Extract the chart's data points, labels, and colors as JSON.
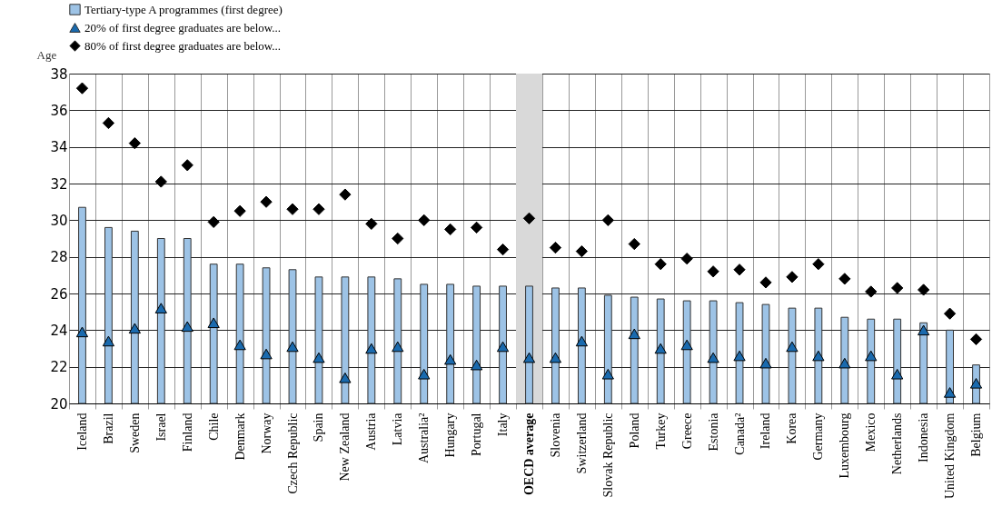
{
  "chart_data": {
    "type": "bar",
    "ylabel": "Age",
    "legend": "top",
    "grid": true,
    "categories": [
      "Iceland",
      "Brazil",
      "Sweden",
      "Israel",
      "Finland",
      "Chile",
      "Denmark",
      "Norway",
      "Czech Republic",
      "Spain",
      "New Zealand",
      "Austria",
      "Latvia",
      "Australia²",
      "Hungary",
      "Portugal",
      "Italy",
      "OECD average",
      "Slovenia",
      "Switzerland",
      "Slovak Republic",
      "Poland",
      "Turkey",
      "Greece",
      "Estonia",
      "Canada²",
      "Ireland",
      "Korea",
      "Germany",
      "Luxembourg",
      "Mexico",
      "Netherlands",
      "Indonesia",
      "United Kingdom",
      "Belgium"
    ],
    "ylim": [
      20,
      38
    ],
    "yticks": [
      20,
      22,
      24,
      26,
      28,
      30,
      32,
      34,
      36,
      38
    ],
    "bands": [
      {
        "axis": "x",
        "from": "OECD average",
        "to": "OECD average",
        "color": "#d9d9d9"
      }
    ],
    "series": [
      {
        "name": "Tertiary-type A programmes (first degree)",
        "color": "#9dc3e6",
        "values": [
          30.7,
          29.6,
          29.4,
          29.0,
          29.0,
          27.6,
          27.6,
          27.4,
          27.3,
          26.9,
          26.9,
          26.9,
          26.8,
          26.5,
          26.5,
          26.4,
          26.4,
          26.4,
          26.3,
          26.3,
          25.9,
          25.8,
          25.7,
          25.6,
          25.6,
          25.5,
          25.4,
          25.2,
          25.2,
          24.7,
          24.6,
          24.6,
          24.4,
          24.0,
          22.1
        ]
      },
      {
        "name": "20% of first degree graduates are below...",
        "type": "scatter",
        "marker": "triangle",
        "color": "#1a6aae",
        "values": [
          23.9,
          23.4,
          24.1,
          25.2,
          24.2,
          24.4,
          23.2,
          22.7,
          23.1,
          22.5,
          21.4,
          23.0,
          23.1,
          21.6,
          22.4,
          22.1,
          23.1,
          22.5,
          22.5,
          23.4,
          21.6,
          23.8,
          23.0,
          23.2,
          22.5,
          22.6,
          22.2,
          23.1,
          22.6,
          22.2,
          22.6,
          21.6,
          24.0,
          20.6,
          21.1
        ]
      },
      {
        "name": "80% of first degree graduates are below...",
        "type": "scatter",
        "marker": "diamond",
        "color": "#000000",
        "values": [
          37.2,
          35.3,
          34.2,
          32.1,
          33.0,
          29.9,
          30.5,
          31.0,
          30.6,
          30.6,
          31.4,
          29.8,
          29.0,
          30.0,
          29.5,
          29.6,
          28.4,
          30.1,
          28.5,
          28.3,
          30.0,
          28.7,
          27.6,
          27.9,
          27.2,
          27.3,
          26.6,
          26.9,
          27.6,
          26.8,
          26.1,
          26.3,
          26.2,
          24.9,
          23.5
        ]
      }
    ]
  }
}
